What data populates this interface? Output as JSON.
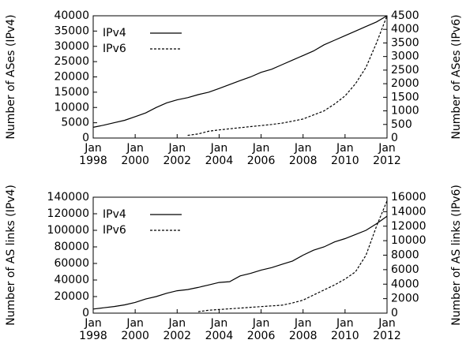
{
  "chart_data": [
    {
      "type": "line",
      "ylabel": "Number of ASes (IPv4)",
      "y2label": "Number of ASes (IPv6)",
      "x": [
        "1998-01",
        "1998-07",
        "1999-01",
        "1999-07",
        "2000-01",
        "2000-07",
        "2001-01",
        "2001-07",
        "2002-01",
        "2002-07",
        "2003-01",
        "2003-07",
        "2004-01",
        "2004-07",
        "2005-01",
        "2005-07",
        "2006-01",
        "2006-07",
        "2007-01",
        "2007-07",
        "2008-01",
        "2008-07",
        "2009-01",
        "2009-07",
        "2010-01",
        "2010-07",
        "2011-01",
        "2011-07",
        "2012-01"
      ],
      "xlim": [
        "1998-01",
        "2012-01"
      ],
      "xticks": [
        {
          "value": "1998-01",
          "label": "Jan\n1998"
        },
        {
          "value": "2000-01",
          "label": "Jan\n2000"
        },
        {
          "value": "2002-01",
          "label": "Jan\n2002"
        },
        {
          "value": "2004-01",
          "label": "Jan\n2004"
        },
        {
          "value": "2006-01",
          "label": "Jan\n2006"
        },
        {
          "value": "2008-01",
          "label": "Jan\n2008"
        },
        {
          "value": "2010-01",
          "label": "Jan\n2010"
        },
        {
          "value": "2012-01",
          "label": "Jan\n2012"
        }
      ],
      "ylim": [
        0,
        40000
      ],
      "yticks": [
        0,
        5000,
        10000,
        15000,
        20000,
        25000,
        30000,
        35000,
        40000
      ],
      "y2lim": [
        0,
        4500
      ],
      "y2ticks": [
        0,
        500,
        1000,
        1500,
        2000,
        2500,
        3000,
        3500,
        4000,
        4500
      ],
      "legend": "upper left",
      "series": [
        {
          "name": "IPv4",
          "color": "#000000",
          "dash": "solid",
          "values": [
            3500,
            4200,
            5000,
            5800,
            7000,
            8200,
            10000,
            11500,
            12500,
            13200,
            14200,
            15000,
            16200,
            17500,
            18800,
            20000,
            21500,
            22500,
            24000,
            25500,
            27000,
            28500,
            30500,
            32000,
            33500,
            35000,
            36500,
            38000,
            40000
          ]
        },
        {
          "name": "IPv6",
          "color": "#000000",
          "dash": "dashed",
          "axis": "y2",
          "values": [
            null,
            null,
            null,
            null,
            null,
            null,
            null,
            null,
            null,
            100,
            150,
            250,
            300,
            340,
            380,
            420,
            460,
            500,
            550,
            620,
            700,
            850,
            1000,
            1250,
            1550,
            2000,
            2600,
            3500,
            4500
          ]
        }
      ]
    },
    {
      "type": "line",
      "ylabel": "Number of AS links (IPv4)",
      "y2label": "Number of AS links (IPv6)",
      "x": [
        "1998-01",
        "1998-07",
        "1999-01",
        "1999-07",
        "2000-01",
        "2000-07",
        "2001-01",
        "2001-07",
        "2002-01",
        "2002-07",
        "2003-01",
        "2003-07",
        "2004-01",
        "2004-07",
        "2005-01",
        "2005-07",
        "2006-01",
        "2006-07",
        "2007-01",
        "2007-07",
        "2008-01",
        "2008-07",
        "2009-01",
        "2009-07",
        "2010-01",
        "2010-07",
        "2011-01",
        "2011-07",
        "2012-01"
      ],
      "xlim": [
        "1998-01",
        "2012-01"
      ],
      "xticks": [
        {
          "value": "1998-01",
          "label": "Jan\n1998"
        },
        {
          "value": "2000-01",
          "label": "Jan\n2000"
        },
        {
          "value": "2002-01",
          "label": "Jan\n2002"
        },
        {
          "value": "2004-01",
          "label": "Jan\n2004"
        },
        {
          "value": "2006-01",
          "label": "Jan\n2006"
        },
        {
          "value": "2008-01",
          "label": "Jan\n2008"
        },
        {
          "value": "2010-01",
          "label": "Jan\n2010"
        },
        {
          "value": "2012-01",
          "label": "Jan\n2012"
        }
      ],
      "ylim": [
        0,
        140000
      ],
      "yticks": [
        0,
        20000,
        40000,
        60000,
        80000,
        100000,
        120000,
        140000
      ],
      "y2lim": [
        0,
        16000
      ],
      "y2ticks": [
        0,
        2000,
        4000,
        6000,
        8000,
        10000,
        12000,
        14000,
        16000
      ],
      "legend": "upper left",
      "series": [
        {
          "name": "IPv4",
          "color": "#000000",
          "dash": "solid",
          "values": [
            5000,
            6500,
            8000,
            10000,
            13000,
            17000,
            20000,
            24000,
            27000,
            28500,
            31000,
            34000,
            37000,
            38000,
            45000,
            48000,
            52000,
            55000,
            59000,
            63000,
            70000,
            76000,
            80000,
            86000,
            90000,
            95000,
            100000,
            108000,
            117000
          ]
        },
        {
          "name": "IPv6",
          "color": "#000000",
          "dash": "dashed",
          "axis": "y2",
          "values": [
            null,
            null,
            null,
            null,
            null,
            null,
            null,
            null,
            null,
            null,
            200,
            400,
            500,
            600,
            700,
            800,
            900,
            1000,
            1100,
            1400,
            1800,
            2500,
            3200,
            3900,
            4700,
            5700,
            8000,
            12000,
            15500
          ]
        }
      ]
    }
  ]
}
